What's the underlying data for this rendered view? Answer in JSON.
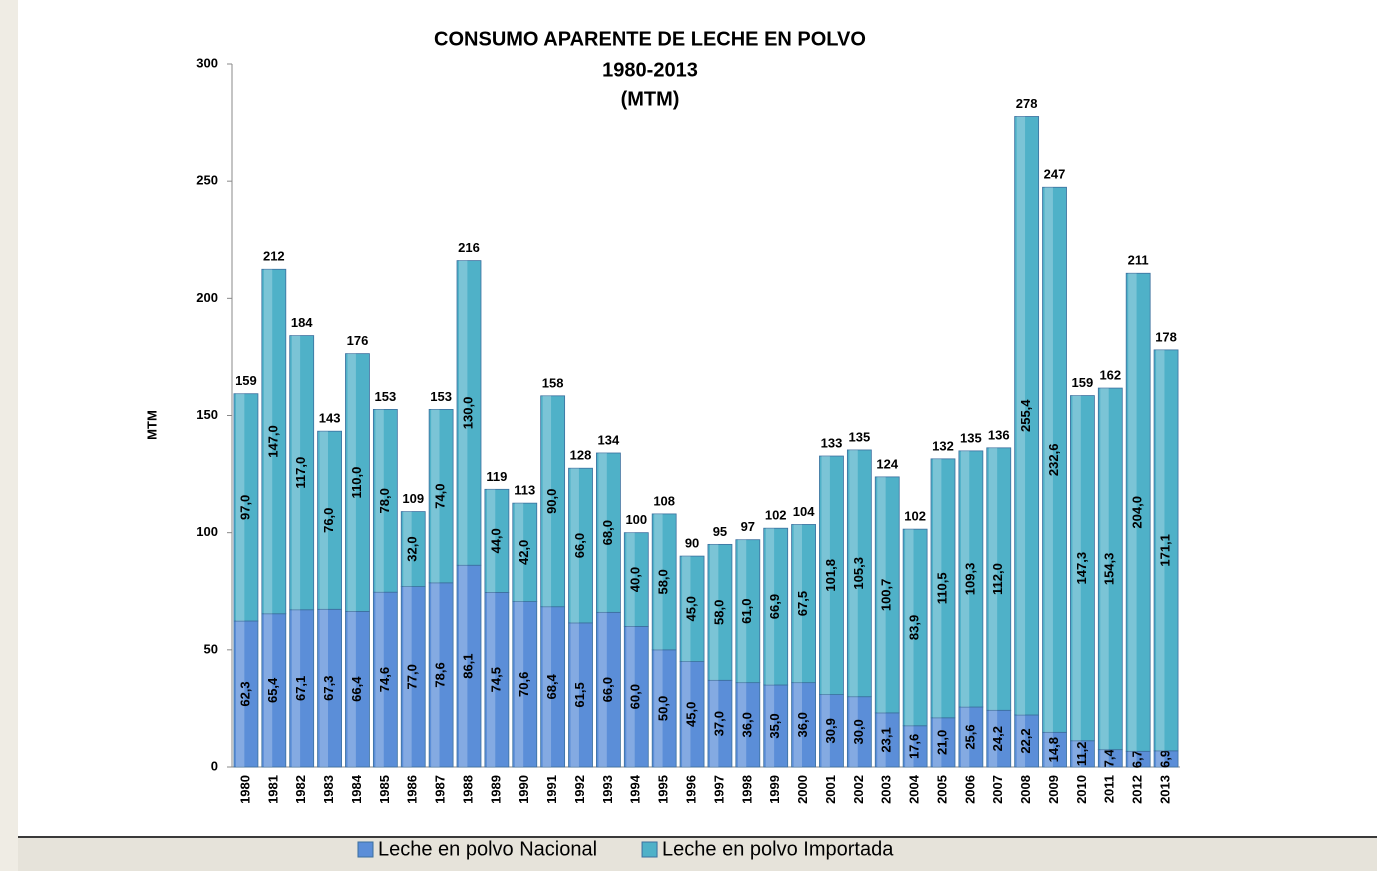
{
  "chart_data": {
    "type": "stacked-bar",
    "title": "CONSUMO APARENTE DE LECHE EN POLVO",
    "subtitle": "1980-2013",
    "unit_label": "(MTM)",
    "y_label": "MTM",
    "categories": [
      "1980",
      "1981",
      "1982",
      "1983",
      "1984",
      "1985",
      "1986",
      "1987",
      "1988",
      "1989",
      "1990",
      "1991",
      "1992",
      "1993",
      "1994",
      "1995",
      "1996",
      "1997",
      "1998",
      "1999",
      "2000",
      "2001",
      "2002",
      "2003",
      "2004",
      "2005",
      "2006",
      "2007",
      "2008",
      "2009",
      "2010",
      "2011",
      "2012",
      "2013"
    ],
    "series": [
      {
        "name": "Leche en polvo Nacional",
        "color": "#5b8ed8",
        "values": [
          62.3,
          65.4,
          67.1,
          67.3,
          66.4,
          74.6,
          77.0,
          78.6,
          86.1,
          74.5,
          70.6,
          68.4,
          61.5,
          66.0,
          60.0,
          50.0,
          45.0,
          37.0,
          36.0,
          35.0,
          36.0,
          30.9,
          30.0,
          23.1,
          17.6,
          21.0,
          25.6,
          24.2,
          22.2,
          14.8,
          11.2,
          7.4,
          6.7,
          6.9
        ],
        "value_labels": [
          "62,3",
          "65,4",
          "67,1",
          "67,3",
          "66,4",
          "74,6",
          "77,0",
          "78,6",
          "86,1",
          "74,5",
          "70,6",
          "68,4",
          "61,5",
          "66,0",
          "60,0",
          "50,0",
          "45,0",
          "37,0",
          "36,0",
          "35,0",
          "36,0",
          "30,9",
          "30,0",
          "23,1",
          "17,6",
          "21,0",
          "25,6",
          "24,2",
          "22,2",
          "14,8",
          "11,2",
          "7,4",
          "6,7",
          "6,9"
        ]
      },
      {
        "name": "Leche en polvo Importada",
        "color": "#4fb1c8",
        "values": [
          97.0,
          147.0,
          117.0,
          76.0,
          110.0,
          78.0,
          32.0,
          74.0,
          130.0,
          44.0,
          42.0,
          90.0,
          66.0,
          68.0,
          40.0,
          58.0,
          45.0,
          58.0,
          61.0,
          66.9,
          67.5,
          101.8,
          105.3,
          100.7,
          83.9,
          110.5,
          109.3,
          112.0,
          255.4,
          232.6,
          147.3,
          154.3,
          204.0,
          171.1
        ],
        "value_labels": [
          "97,0",
          "147,0",
          "117,0",
          "76,0",
          "110,0",
          "78,0",
          "32,0",
          "74,0",
          "130,0",
          "44,0",
          "42,0",
          "90,0",
          "66,0",
          "68,0",
          "40,0",
          "58,0",
          "45,0",
          "58,0",
          "61,0",
          "66,9",
          "67,5",
          "101,8",
          "105,3",
          "100,7",
          "83,9",
          "110,5",
          "109,3",
          "112,0",
          "255,4",
          "232,6",
          "147,3",
          "154,3",
          "204,0",
          "171,1"
        ]
      }
    ],
    "totals": [
      159,
      212,
      184,
      143,
      176,
      153,
      109,
      153,
      216,
      119,
      113,
      158,
      128,
      134,
      100,
      108,
      90,
      95,
      97,
      102,
      104,
      133,
      135,
      124,
      102,
      132,
      135,
      136,
      278,
      247,
      159,
      162,
      211,
      178
    ],
    "ylim": [
      0,
      300
    ],
    "yticks": [
      0,
      50,
      100,
      150,
      200,
      250,
      300
    ],
    "legend": "bottom"
  }
}
